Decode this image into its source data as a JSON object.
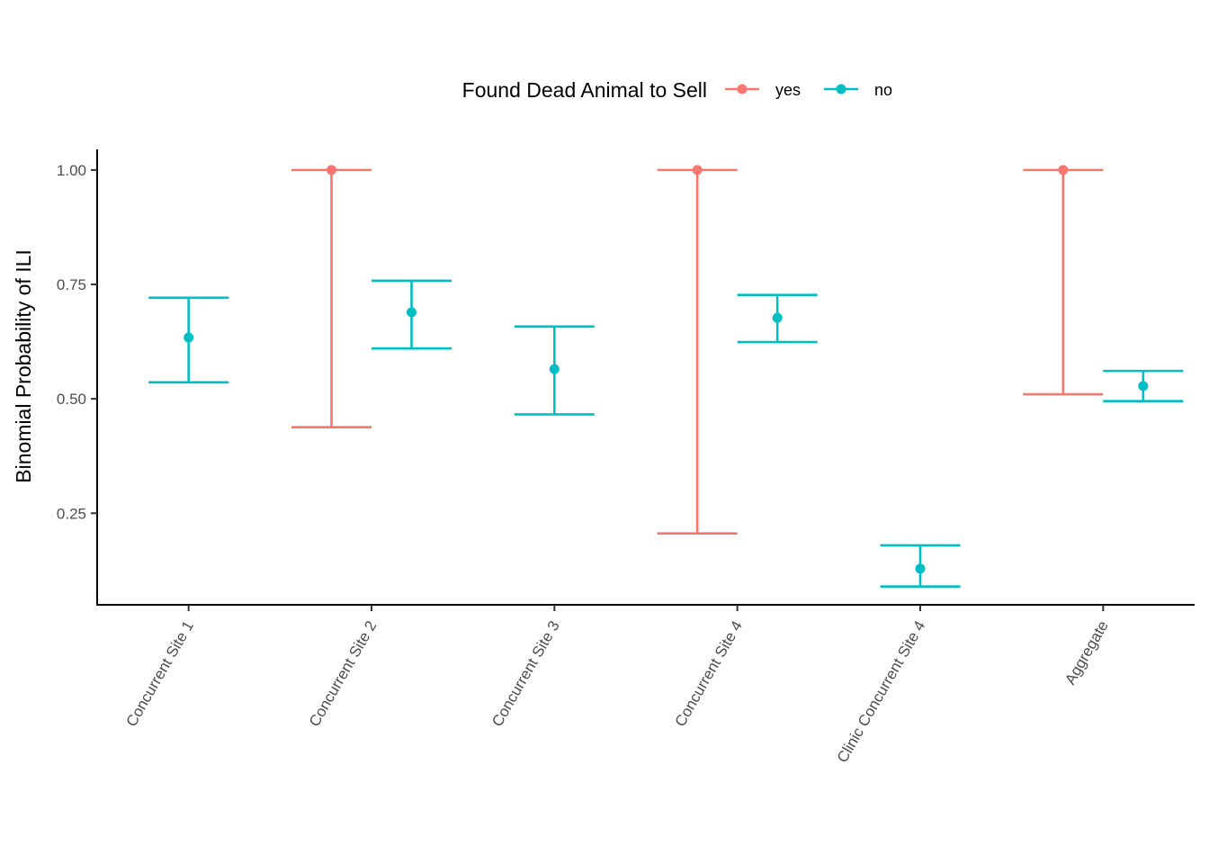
{
  "chart_data": {
    "type": "errorbar",
    "title": "",
    "xlabel": "",
    "ylabel": "Binomial Probability of ILI",
    "ylim": [
      0.05,
      1.045
    ],
    "y_ticks": [
      "1.00",
      "0.75",
      "0.50",
      "0.25"
    ],
    "y_tick_values": [
      1.0,
      0.75,
      0.5,
      0.25
    ],
    "grid": false,
    "legend": {
      "title": "Found Dead Animal to Sell",
      "position": "top",
      "entries": [
        "yes",
        "no"
      ]
    },
    "categories": [
      "Concurrent Site 1",
      "Concurrent Site 2",
      "Concurrent Site 3",
      "Concurrent Site 4",
      "Clinic Concurrent Site 4",
      "Aggregate"
    ],
    "series": [
      {
        "name": "yes",
        "color": "#F8766D",
        "points": [
          {
            "category": "Concurrent Site 2",
            "estimate": 1.0,
            "lower": 0.438,
            "upper": 1.0
          },
          {
            "category": "Concurrent Site 4",
            "estimate": 1.0,
            "lower": 0.206,
            "upper": 1.0
          },
          {
            "category": "Aggregate",
            "estimate": 1.0,
            "lower": 0.51,
            "upper": 1.0
          }
        ]
      },
      {
        "name": "no",
        "color": "#00BFC4",
        "points": [
          {
            "category": "Concurrent Site 1",
            "estimate": 0.634,
            "lower": 0.536,
            "upper": 0.721
          },
          {
            "category": "Concurrent Site 2",
            "estimate": 0.689,
            "lower": 0.61,
            "upper": 0.758
          },
          {
            "category": "Concurrent Site 3",
            "estimate": 0.565,
            "lower": 0.466,
            "upper": 0.658
          },
          {
            "category": "Concurrent Site 4",
            "estimate": 0.677,
            "lower": 0.624,
            "upper": 0.727
          },
          {
            "category": "Clinic Concurrent Site 4",
            "estimate": 0.129,
            "lower": 0.09,
            "upper": 0.18
          },
          {
            "category": "Aggregate",
            "estimate": 0.528,
            "lower": 0.495,
            "upper": 0.561
          }
        ]
      }
    ]
  }
}
